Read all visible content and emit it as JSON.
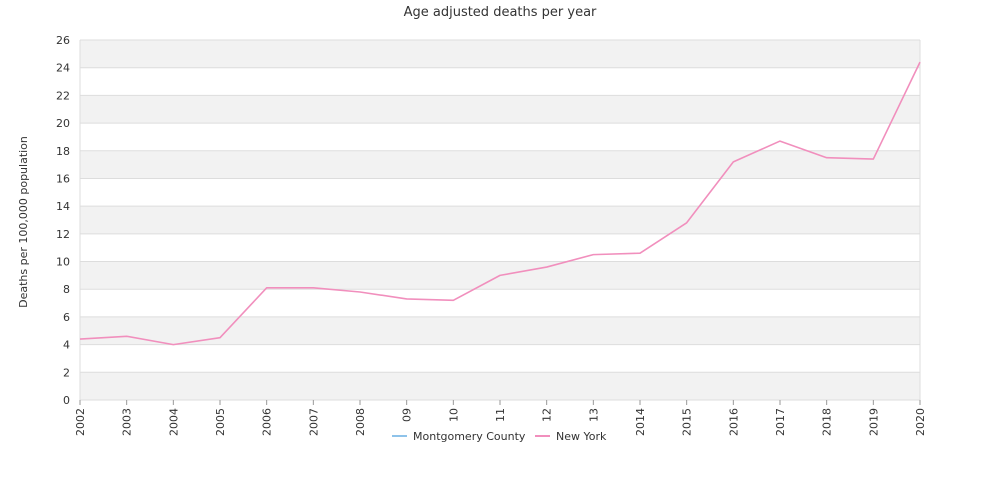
{
  "chart_data": {
    "type": "line",
    "title": "Age adjusted deaths per year",
    "xlabel": "",
    "ylabel": "Deaths per 100,000 population",
    "categories": [
      "2002",
      "2003",
      "2004",
      "2005",
      "2006",
      "2007",
      "2008",
      "09",
      "10",
      "11",
      "12",
      "13",
      "2014",
      "2015",
      "2016",
      "2017",
      "2018",
      "2019",
      "2020"
    ],
    "ylim": [
      0,
      26
    ],
    "yticks": [
      0,
      2,
      4,
      6,
      8,
      10,
      12,
      14,
      16,
      18,
      20,
      22,
      24,
      26
    ],
    "grid": true,
    "legend_position": "bottom",
    "series": [
      {
        "name": "Montgomery County",
        "color": "#8ec3ea",
        "values": [
          null,
          null,
          null,
          null,
          null,
          null,
          null,
          null,
          null,
          null,
          null,
          null,
          null,
          null,
          null,
          null,
          null,
          null,
          null
        ]
      },
      {
        "name": "New York",
        "color": "#f18fbd",
        "values": [
          4.4,
          4.6,
          4.0,
          4.5,
          8.1,
          8.1,
          7.8,
          7.3,
          7.2,
          9.0,
          9.6,
          10.5,
          10.6,
          12.8,
          17.2,
          18.7,
          17.5,
          17.4,
          24.4
        ]
      }
    ],
    "band_colors": [
      "#ffffff",
      "#f2f2f2"
    ]
  }
}
